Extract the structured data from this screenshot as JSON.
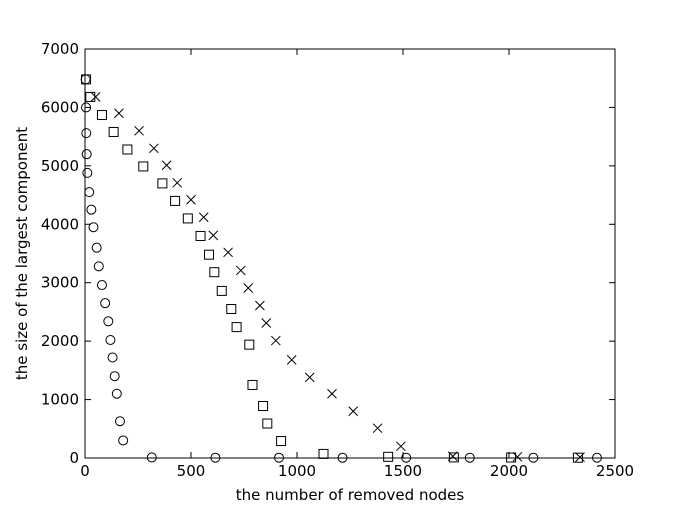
{
  "chart_data": {
    "type": "scatter",
    "xlabel": "the number of removed nodes",
    "ylabel": "the size of the largest component",
    "xlim": [
      0,
      2500
    ],
    "ylim": [
      0,
      7000
    ],
    "x_ticks": [
      0,
      500,
      1000,
      1500,
      2000,
      2500
    ],
    "y_ticks": [
      0,
      1000,
      2000,
      3000,
      4000,
      5000,
      6000,
      7000
    ],
    "grid": false,
    "legend": "none",
    "series": [
      {
        "marker": "circle",
        "points": [
          [
            3,
            6480
          ],
          [
            5,
            6000
          ],
          [
            6,
            5560
          ],
          [
            8,
            5200
          ],
          [
            11,
            4880
          ],
          [
            20,
            4550
          ],
          [
            30,
            4250
          ],
          [
            40,
            3950
          ],
          [
            55,
            3600
          ],
          [
            65,
            3280
          ],
          [
            80,
            2960
          ],
          [
            95,
            2650
          ],
          [
            110,
            2340
          ],
          [
            120,
            2020
          ],
          [
            130,
            1720
          ],
          [
            140,
            1400
          ],
          [
            150,
            1100
          ],
          [
            165,
            630
          ],
          [
            180,
            300
          ],
          [
            315,
            10
          ],
          [
            615,
            5
          ],
          [
            915,
            5
          ],
          [
            1215,
            5
          ],
          [
            1515,
            5
          ],
          [
            1815,
            5
          ],
          [
            2115,
            5
          ],
          [
            2415,
            5
          ]
        ]
      },
      {
        "marker": "square",
        "points": [
          [
            5,
            6480
          ],
          [
            25,
            6180
          ],
          [
            80,
            5870
          ],
          [
            135,
            5580
          ],
          [
            200,
            5280
          ],
          [
            275,
            4990
          ],
          [
            365,
            4700
          ],
          [
            425,
            4400
          ],
          [
            485,
            4100
          ],
          [
            545,
            3800
          ],
          [
            585,
            3480
          ],
          [
            610,
            3180
          ],
          [
            645,
            2860
          ],
          [
            690,
            2550
          ],
          [
            715,
            2240
          ],
          [
            775,
            1940
          ],
          [
            790,
            1250
          ],
          [
            840,
            890
          ],
          [
            860,
            590
          ],
          [
            925,
            290
          ],
          [
            1125,
            70
          ],
          [
            1430,
            20
          ],
          [
            1740,
            10
          ],
          [
            2010,
            8
          ],
          [
            2325,
            5
          ]
        ]
      },
      {
        "marker": "x",
        "points": [
          [
            50,
            6180
          ],
          [
            160,
            5900
          ],
          [
            255,
            5600
          ],
          [
            325,
            5300
          ],
          [
            385,
            5010
          ],
          [
            435,
            4710
          ],
          [
            500,
            4420
          ],
          [
            560,
            4120
          ],
          [
            605,
            3810
          ],
          [
            675,
            3520
          ],
          [
            735,
            3210
          ],
          [
            770,
            2910
          ],
          [
            825,
            2610
          ],
          [
            855,
            2310
          ],
          [
            900,
            2010
          ],
          [
            975,
            1680
          ],
          [
            1060,
            1380
          ],
          [
            1165,
            1100
          ],
          [
            1265,
            800
          ],
          [
            1380,
            510
          ],
          [
            1490,
            200
          ],
          [
            1735,
            30
          ],
          [
            2040,
            20
          ],
          [
            2335,
            15
          ]
        ]
      }
    ]
  }
}
